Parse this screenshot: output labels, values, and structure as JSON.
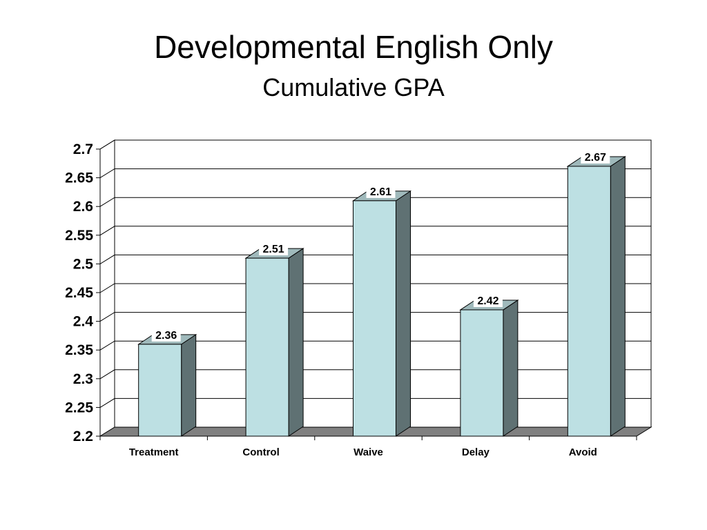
{
  "slide": {
    "title": "Developmental English Only",
    "subtitle": "Cumulative GPA"
  },
  "chart_data": {
    "type": "bar",
    "style": "3d-column",
    "title": "Developmental English Only",
    "subtitle": "Cumulative GPA",
    "categories": [
      "Treatment",
      "Control",
      "Waive",
      "Delay",
      "Avoid"
    ],
    "values": [
      2.36,
      2.51,
      2.61,
      2.42,
      2.67
    ],
    "data_labels": [
      "2.36",
      "2.51",
      "2.61",
      "2.42",
      "2.67"
    ],
    "ylim": [
      2.2,
      2.7
    ],
    "yticks": [
      "2.2",
      "2.25",
      "2.3",
      "2.35",
      "2.4",
      "2.45",
      "2.5",
      "2.55",
      "2.6",
      "2.65",
      "2.7"
    ],
    "xlabel": "",
    "ylabel": "",
    "grid": true,
    "legend": "none",
    "colors": {
      "bar_front": "#bde0e3",
      "bar_side": "#5f7173",
      "bar_top": "#9fb9bb",
      "floor": "#808080",
      "grid": "#000000"
    }
  }
}
